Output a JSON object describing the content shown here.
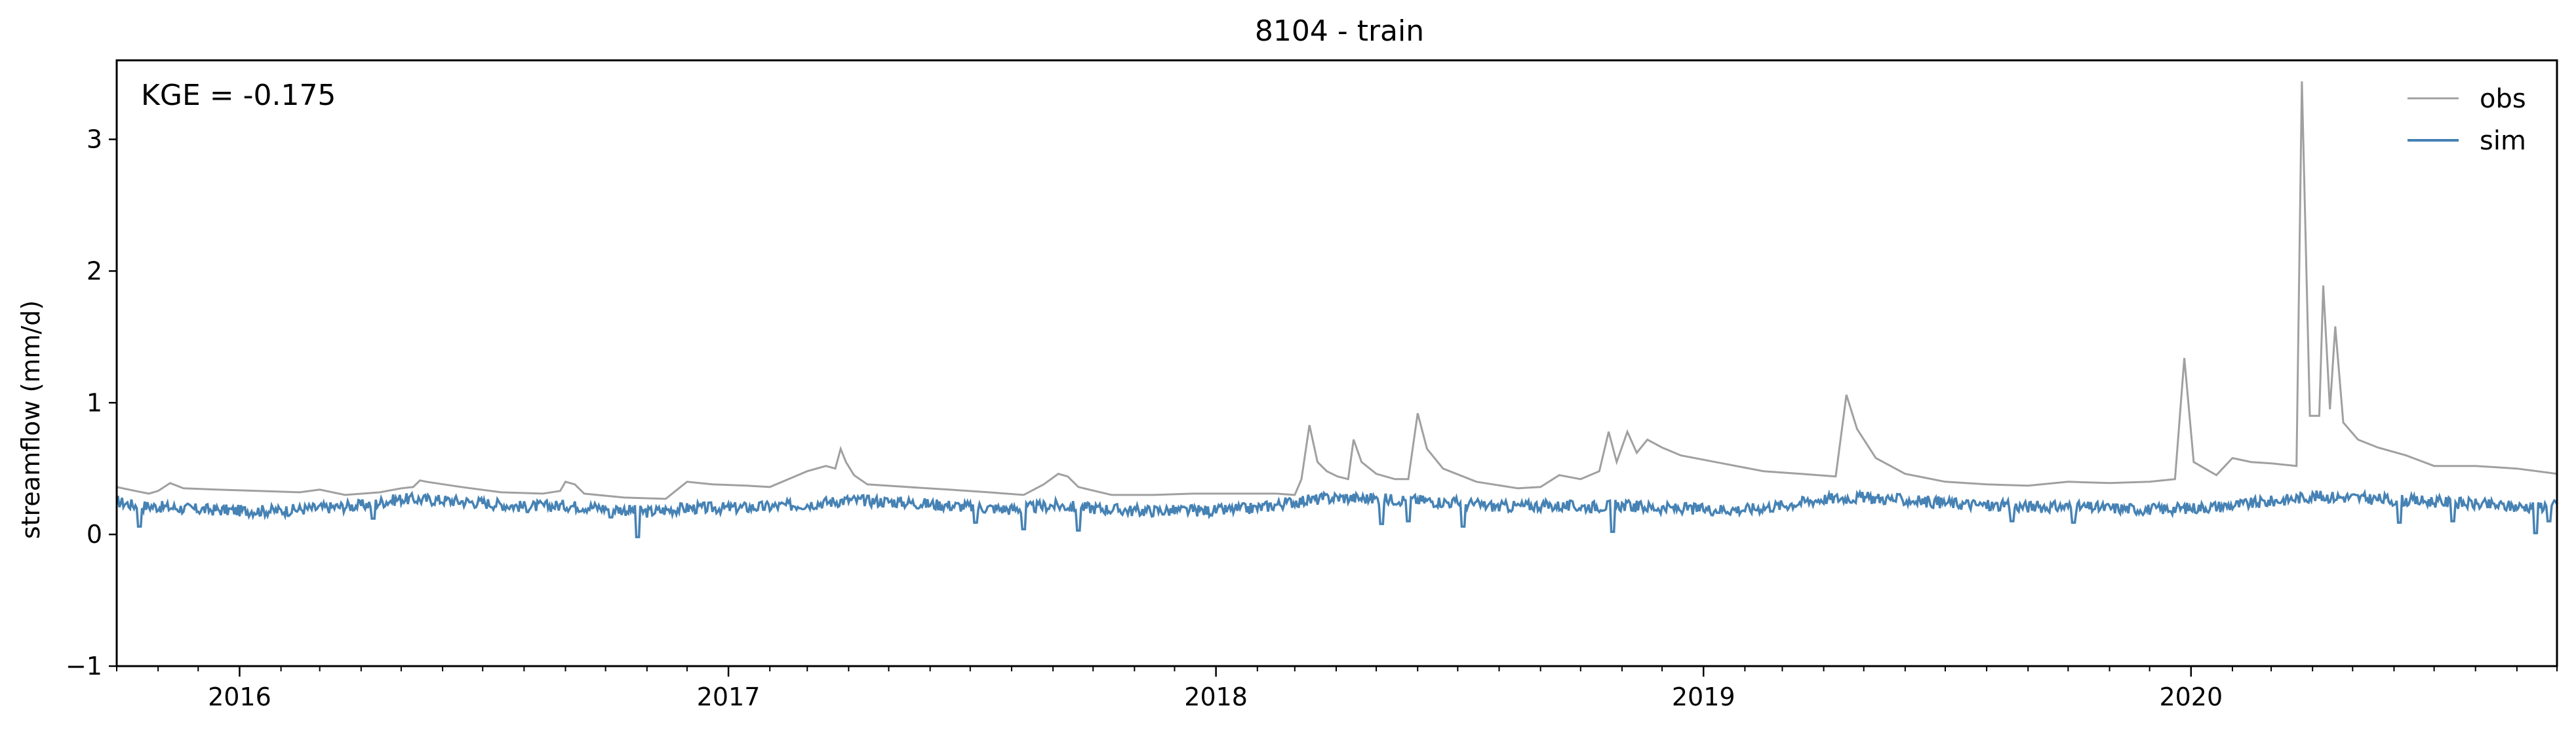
{
  "chart_data": {
    "type": "line",
    "title": "8104 - train",
    "xlabel": "",
    "ylabel": "streamflow (mm/d)",
    "annotation": "KGE = -0.175",
    "xlim": [
      "2015-10-01",
      "2020-10-01"
    ],
    "ylim": [
      -1,
      3.6
    ],
    "y_ticks": [
      -1,
      0,
      1,
      2,
      3
    ],
    "y_tick_labels": [
      "−1",
      "0",
      "1",
      "2",
      "3"
    ],
    "x_ticks": [
      "2016-01-01",
      "2017-01-01",
      "2018-01-01",
      "2019-01-01",
      "2020-01-01"
    ],
    "x_tick_labels": [
      "2016",
      "2017",
      "2018",
      "2019",
      "2020"
    ],
    "x_minor_ticks": "monthly",
    "grid": false,
    "legend_position": "top-right",
    "series": [
      {
        "name": "obs",
        "color": "#a0a0a0",
        "points": [
          [
            "2015-10-01",
            0.36
          ],
          [
            "2015-10-15",
            0.33
          ],
          [
            "2015-10-25",
            0.31
          ],
          [
            "2015-11-01",
            0.33
          ],
          [
            "2015-11-10",
            0.39
          ],
          [
            "2015-11-20",
            0.35
          ],
          [
            "2015-12-15",
            0.34
          ],
          [
            "2016-01-15",
            0.33
          ],
          [
            "2016-02-15",
            0.32
          ],
          [
            "2016-03-01",
            0.34
          ],
          [
            "2016-03-20",
            0.3
          ],
          [
            "2016-04-15",
            0.32
          ],
          [
            "2016-05-01",
            0.35
          ],
          [
            "2016-05-10",
            0.36
          ],
          [
            "2016-05-15",
            0.41
          ],
          [
            "2016-05-20",
            0.4
          ],
          [
            "2016-06-15",
            0.36
          ],
          [
            "2016-07-15",
            0.32
          ],
          [
            "2016-08-15",
            0.31
          ],
          [
            "2016-08-28",
            0.33
          ],
          [
            "2016-09-01",
            0.4
          ],
          [
            "2016-09-08",
            0.38
          ],
          [
            "2016-09-15",
            0.31
          ],
          [
            "2016-10-15",
            0.28
          ],
          [
            "2016-11-15",
            0.27
          ],
          [
            "2016-12-01",
            0.4
          ],
          [
            "2016-12-20",
            0.38
          ],
          [
            "2017-01-15",
            0.37
          ],
          [
            "2017-02-01",
            0.36
          ],
          [
            "2017-02-15",
            0.42
          ],
          [
            "2017-03-01",
            0.48
          ],
          [
            "2017-03-15",
            0.52
          ],
          [
            "2017-03-22",
            0.5
          ],
          [
            "2017-03-26",
            0.65
          ],
          [
            "2017-03-30",
            0.55
          ],
          [
            "2017-04-05",
            0.45
          ],
          [
            "2017-04-15",
            0.38
          ],
          [
            "2017-05-15",
            0.36
          ],
          [
            "2017-06-15",
            0.34
          ],
          [
            "2017-07-15",
            0.32
          ],
          [
            "2017-08-10",
            0.3
          ],
          [
            "2017-08-25",
            0.38
          ],
          [
            "2017-09-05",
            0.46
          ],
          [
            "2017-09-12",
            0.44
          ],
          [
            "2017-09-20",
            0.36
          ],
          [
            "2017-10-15",
            0.3
          ],
          [
            "2017-11-15",
            0.3
          ],
          [
            "2017-12-15",
            0.31
          ],
          [
            "2018-01-15",
            0.31
          ],
          [
            "2018-02-15",
            0.31
          ],
          [
            "2018-03-01",
            0.3
          ],
          [
            "2018-03-06",
            0.42
          ],
          [
            "2018-03-12",
            0.83
          ],
          [
            "2018-03-18",
            0.55
          ],
          [
            "2018-03-25",
            0.48
          ],
          [
            "2018-04-02",
            0.44
          ],
          [
            "2018-04-10",
            0.42
          ],
          [
            "2018-04-14",
            0.72
          ],
          [
            "2018-04-20",
            0.55
          ],
          [
            "2018-05-01",
            0.46
          ],
          [
            "2018-05-15",
            0.42
          ],
          [
            "2018-05-25",
            0.42
          ],
          [
            "2018-06-01",
            0.92
          ],
          [
            "2018-06-08",
            0.65
          ],
          [
            "2018-06-20",
            0.5
          ],
          [
            "2018-07-15",
            0.4
          ],
          [
            "2018-08-15",
            0.35
          ],
          [
            "2018-09-01",
            0.36
          ],
          [
            "2018-09-15",
            0.45
          ],
          [
            "2018-10-01",
            0.42
          ],
          [
            "2018-10-15",
            0.48
          ],
          [
            "2018-10-22",
            0.78
          ],
          [
            "2018-10-28",
            0.55
          ],
          [
            "2018-11-05",
            0.78
          ],
          [
            "2018-11-12",
            0.62
          ],
          [
            "2018-11-20",
            0.72
          ],
          [
            "2018-12-01",
            0.66
          ],
          [
            "2018-12-15",
            0.6
          ],
          [
            "2019-01-15",
            0.54
          ],
          [
            "2019-02-15",
            0.48
          ],
          [
            "2019-03-15",
            0.46
          ],
          [
            "2019-04-10",
            0.44
          ],
          [
            "2019-04-18",
            1.06
          ],
          [
            "2019-04-26",
            0.8
          ],
          [
            "2019-05-10",
            0.58
          ],
          [
            "2019-06-01",
            0.46
          ],
          [
            "2019-07-01",
            0.4
          ],
          [
            "2019-08-01",
            0.38
          ],
          [
            "2019-09-01",
            0.37
          ],
          [
            "2019-10-01",
            0.4
          ],
          [
            "2019-11-01",
            0.39
          ],
          [
            "2019-12-01",
            0.4
          ],
          [
            "2019-12-20",
            0.42
          ],
          [
            "2019-12-27",
            1.34
          ],
          [
            "2020-01-03",
            0.55
          ],
          [
            "2020-01-20",
            0.45
          ],
          [
            "2020-02-01",
            0.58
          ],
          [
            "2020-02-15",
            0.55
          ],
          [
            "2020-03-01",
            0.54
          ],
          [
            "2020-03-20",
            0.52
          ],
          [
            "2020-03-24",
            3.44
          ],
          [
            "2020-03-30",
            0.9
          ],
          [
            "2020-04-06",
            0.9
          ],
          [
            "2020-04-09",
            1.89
          ],
          [
            "2020-04-14",
            0.95
          ],
          [
            "2020-04-18",
            1.58
          ],
          [
            "2020-04-24",
            0.85
          ],
          [
            "2020-05-05",
            0.72
          ],
          [
            "2020-05-20",
            0.66
          ],
          [
            "2020-06-10",
            0.6
          ],
          [
            "2020-07-01",
            0.52
          ],
          [
            "2020-08-01",
            0.52
          ],
          [
            "2020-09-01",
            0.5
          ],
          [
            "2020-10-01",
            0.46
          ]
        ]
      },
      {
        "name": "sim",
        "color": "#4682b4",
        "points": [
          [
            "2015-10-01",
            0.25
          ],
          [
            "2015-10-15",
            0.22
          ],
          [
            "2015-11-01",
            0.21
          ],
          [
            "2015-12-01",
            0.19
          ],
          [
            "2016-01-01",
            0.18
          ],
          [
            "2016-02-01",
            0.18
          ],
          [
            "2016-03-01",
            0.2
          ],
          [
            "2016-04-01",
            0.22
          ],
          [
            "2016-05-01",
            0.27
          ],
          [
            "2016-06-01",
            0.26
          ],
          [
            "2016-07-01",
            0.24
          ],
          [
            "2016-08-01",
            0.21
          ],
          [
            "2016-09-01",
            0.22
          ],
          [
            "2016-10-01",
            0.2
          ],
          [
            "2016-11-01",
            0.17
          ],
          [
            "2016-12-01",
            0.2
          ],
          [
            "2017-01-01",
            0.2
          ],
          [
            "2017-02-01",
            0.21
          ],
          [
            "2017-03-01",
            0.23
          ],
          [
            "2017-04-01",
            0.26
          ],
          [
            "2017-05-01",
            0.25
          ],
          [
            "2017-06-01",
            0.23
          ],
          [
            "2017-07-01",
            0.21
          ],
          [
            "2017-08-01",
            0.19
          ],
          [
            "2017-09-01",
            0.22
          ],
          [
            "2017-10-01",
            0.2
          ],
          [
            "2017-11-01",
            0.18
          ],
          [
            "2017-12-01",
            0.18
          ],
          [
            "2018-01-01",
            0.18
          ],
          [
            "2018-02-01",
            0.2
          ],
          [
            "2018-03-01",
            0.25
          ],
          [
            "2018-04-01",
            0.28
          ],
          [
            "2018-05-01",
            0.27
          ],
          [
            "2018-06-01",
            0.26
          ],
          [
            "2018-07-01",
            0.24
          ],
          [
            "2018-08-01",
            0.21
          ],
          [
            "2018-09-01",
            0.22
          ],
          [
            "2018-10-01",
            0.21
          ],
          [
            "2018-11-01",
            0.22
          ],
          [
            "2018-12-01",
            0.2
          ],
          [
            "2019-01-01",
            0.19
          ],
          [
            "2019-02-01",
            0.19
          ],
          [
            "2019-03-01",
            0.22
          ],
          [
            "2019-04-01",
            0.27
          ],
          [
            "2019-05-01",
            0.28
          ],
          [
            "2019-06-01",
            0.26
          ],
          [
            "2019-07-01",
            0.24
          ],
          [
            "2019-08-01",
            0.22
          ],
          [
            "2019-09-01",
            0.21
          ],
          [
            "2019-10-01",
            0.21
          ],
          [
            "2019-11-01",
            0.2
          ],
          [
            "2019-12-01",
            0.19
          ],
          [
            "2020-01-01",
            0.2
          ],
          [
            "2020-02-01",
            0.22
          ],
          [
            "2020-03-01",
            0.25
          ],
          [
            "2020-04-01",
            0.29
          ],
          [
            "2020-05-01",
            0.28
          ],
          [
            "2020-06-01",
            0.26
          ],
          [
            "2020-07-01",
            0.25
          ],
          [
            "2020-08-01",
            0.23
          ],
          [
            "2020-09-01",
            0.21
          ],
          [
            "2020-10-01",
            0.22
          ]
        ],
        "dips": [
          [
            "2015-10-18",
            0.06
          ],
          [
            "2016-04-10",
            0.12
          ],
          [
            "2016-10-05",
            0.13
          ],
          [
            "2016-10-25",
            -0.02
          ],
          [
            "2017-07-05",
            0.09
          ],
          [
            "2017-08-10",
            0.04
          ],
          [
            "2017-09-20",
            0.03
          ],
          [
            "2018-05-05",
            0.08
          ],
          [
            "2018-05-25",
            0.1
          ],
          [
            "2018-07-05",
            0.06
          ],
          [
            "2018-10-25",
            0.02
          ],
          [
            "2019-08-20",
            0.1
          ],
          [
            "2019-10-05",
            0.09
          ],
          [
            "2020-06-05",
            0.09
          ],
          [
            "2020-07-15",
            0.1
          ],
          [
            "2020-09-15",
            0.01
          ],
          [
            "2020-09-25",
            0.1
          ]
        ]
      }
    ]
  }
}
